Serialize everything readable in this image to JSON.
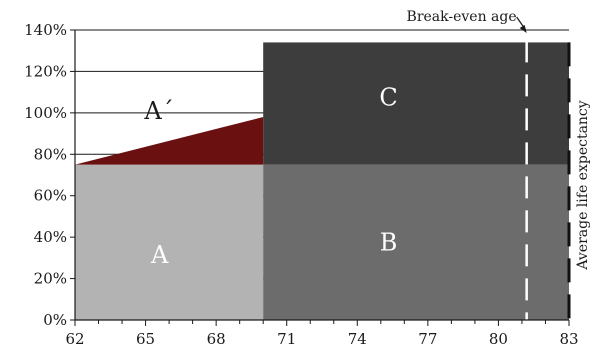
{
  "chart_data": {
    "type": "area",
    "title": "",
    "xlabel": "",
    "ylabel": "",
    "xlim": [
      62,
      83
    ],
    "ylim": [
      0,
      140
    ],
    "x_ticks": [
      62,
      65,
      68,
      71,
      74,
      77,
      80,
      83
    ],
    "x_tick_labels": [
      "62",
      "65",
      "68",
      "71",
      "74",
      "77",
      "80",
      "83"
    ],
    "y_ticks": [
      0,
      20,
      40,
      60,
      80,
      100,
      120,
      140
    ],
    "y_tick_labels": [
      "0%",
      "20%",
      "40%",
      "60%",
      "80%",
      "100%",
      "120%",
      "140%"
    ],
    "gridlines": "horizontal",
    "regions": [
      {
        "label": "A",
        "x_range": [
          62,
          70
        ],
        "y_range": [
          0,
          75
        ],
        "color": "#b3b3b3",
        "label_color": "#ffffff"
      },
      {
        "label": "B",
        "x_range": [
          70,
          83
        ],
        "y_range": [
          0,
          75
        ],
        "color": "#6b6c6b",
        "label_color": "#ffffff"
      },
      {
        "label": "C",
        "x_range": [
          70,
          83
        ],
        "y_range": [
          75,
          134
        ],
        "color": "#3d3d3d",
        "label_color": "#ffffff"
      },
      {
        "label": "A´",
        "polygon": [
          [
            62,
            75
          ],
          [
            70,
            98
          ],
          [
            70,
            75
          ]
        ],
        "color": "#6b1010",
        "label_color": "#1a1a1a"
      }
    ],
    "break_even_age": {
      "x": 81.2,
      "label": "Break-even age"
    },
    "life_expectancy": {
      "x": 83,
      "label": "Average life expectancy"
    }
  }
}
